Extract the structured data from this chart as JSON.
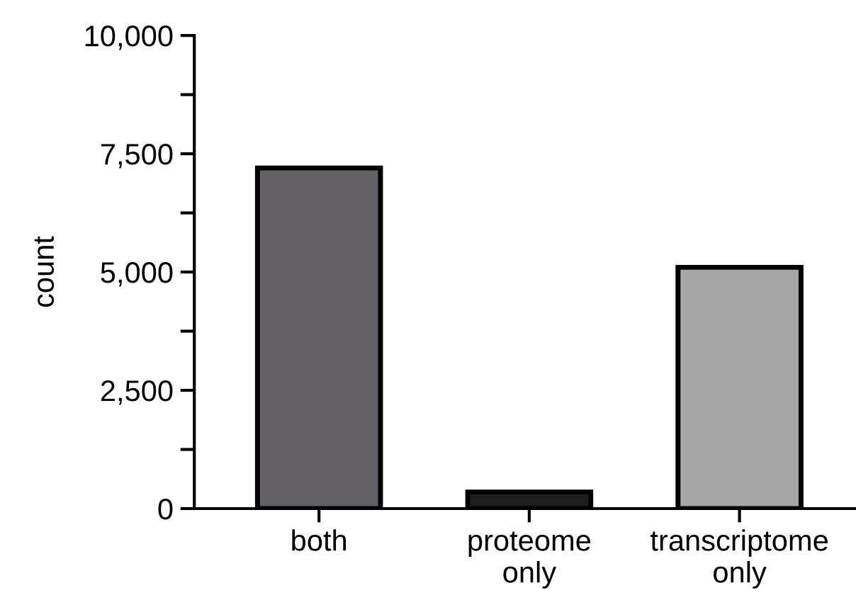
{
  "chart_data": {
    "type": "bar",
    "ylabel": "count",
    "categories": [
      "both",
      "proteome\nonly",
      "transcriptome\nonly"
    ],
    "values": [
      7200,
      350,
      5100
    ],
    "colors": [
      "#636166",
      "#1e1e1e",
      "#a6a6a6"
    ],
    "ylim": [
      0,
      10000
    ],
    "yticks": [
      {
        "value": 0,
        "label": "0"
      },
      {
        "value": 1250,
        "label": null
      },
      {
        "value": 2500,
        "label": "2,500"
      },
      {
        "value": 3750,
        "label": null
      },
      {
        "value": 5000,
        "label": "5,000"
      },
      {
        "value": 6250,
        "label": null
      },
      {
        "value": 7500,
        "label": "7,500"
      },
      {
        "value": 8750,
        "label": null
      },
      {
        "value": 10000,
        "label": "10,000"
      }
    ],
    "grid": false,
    "legend": false
  }
}
